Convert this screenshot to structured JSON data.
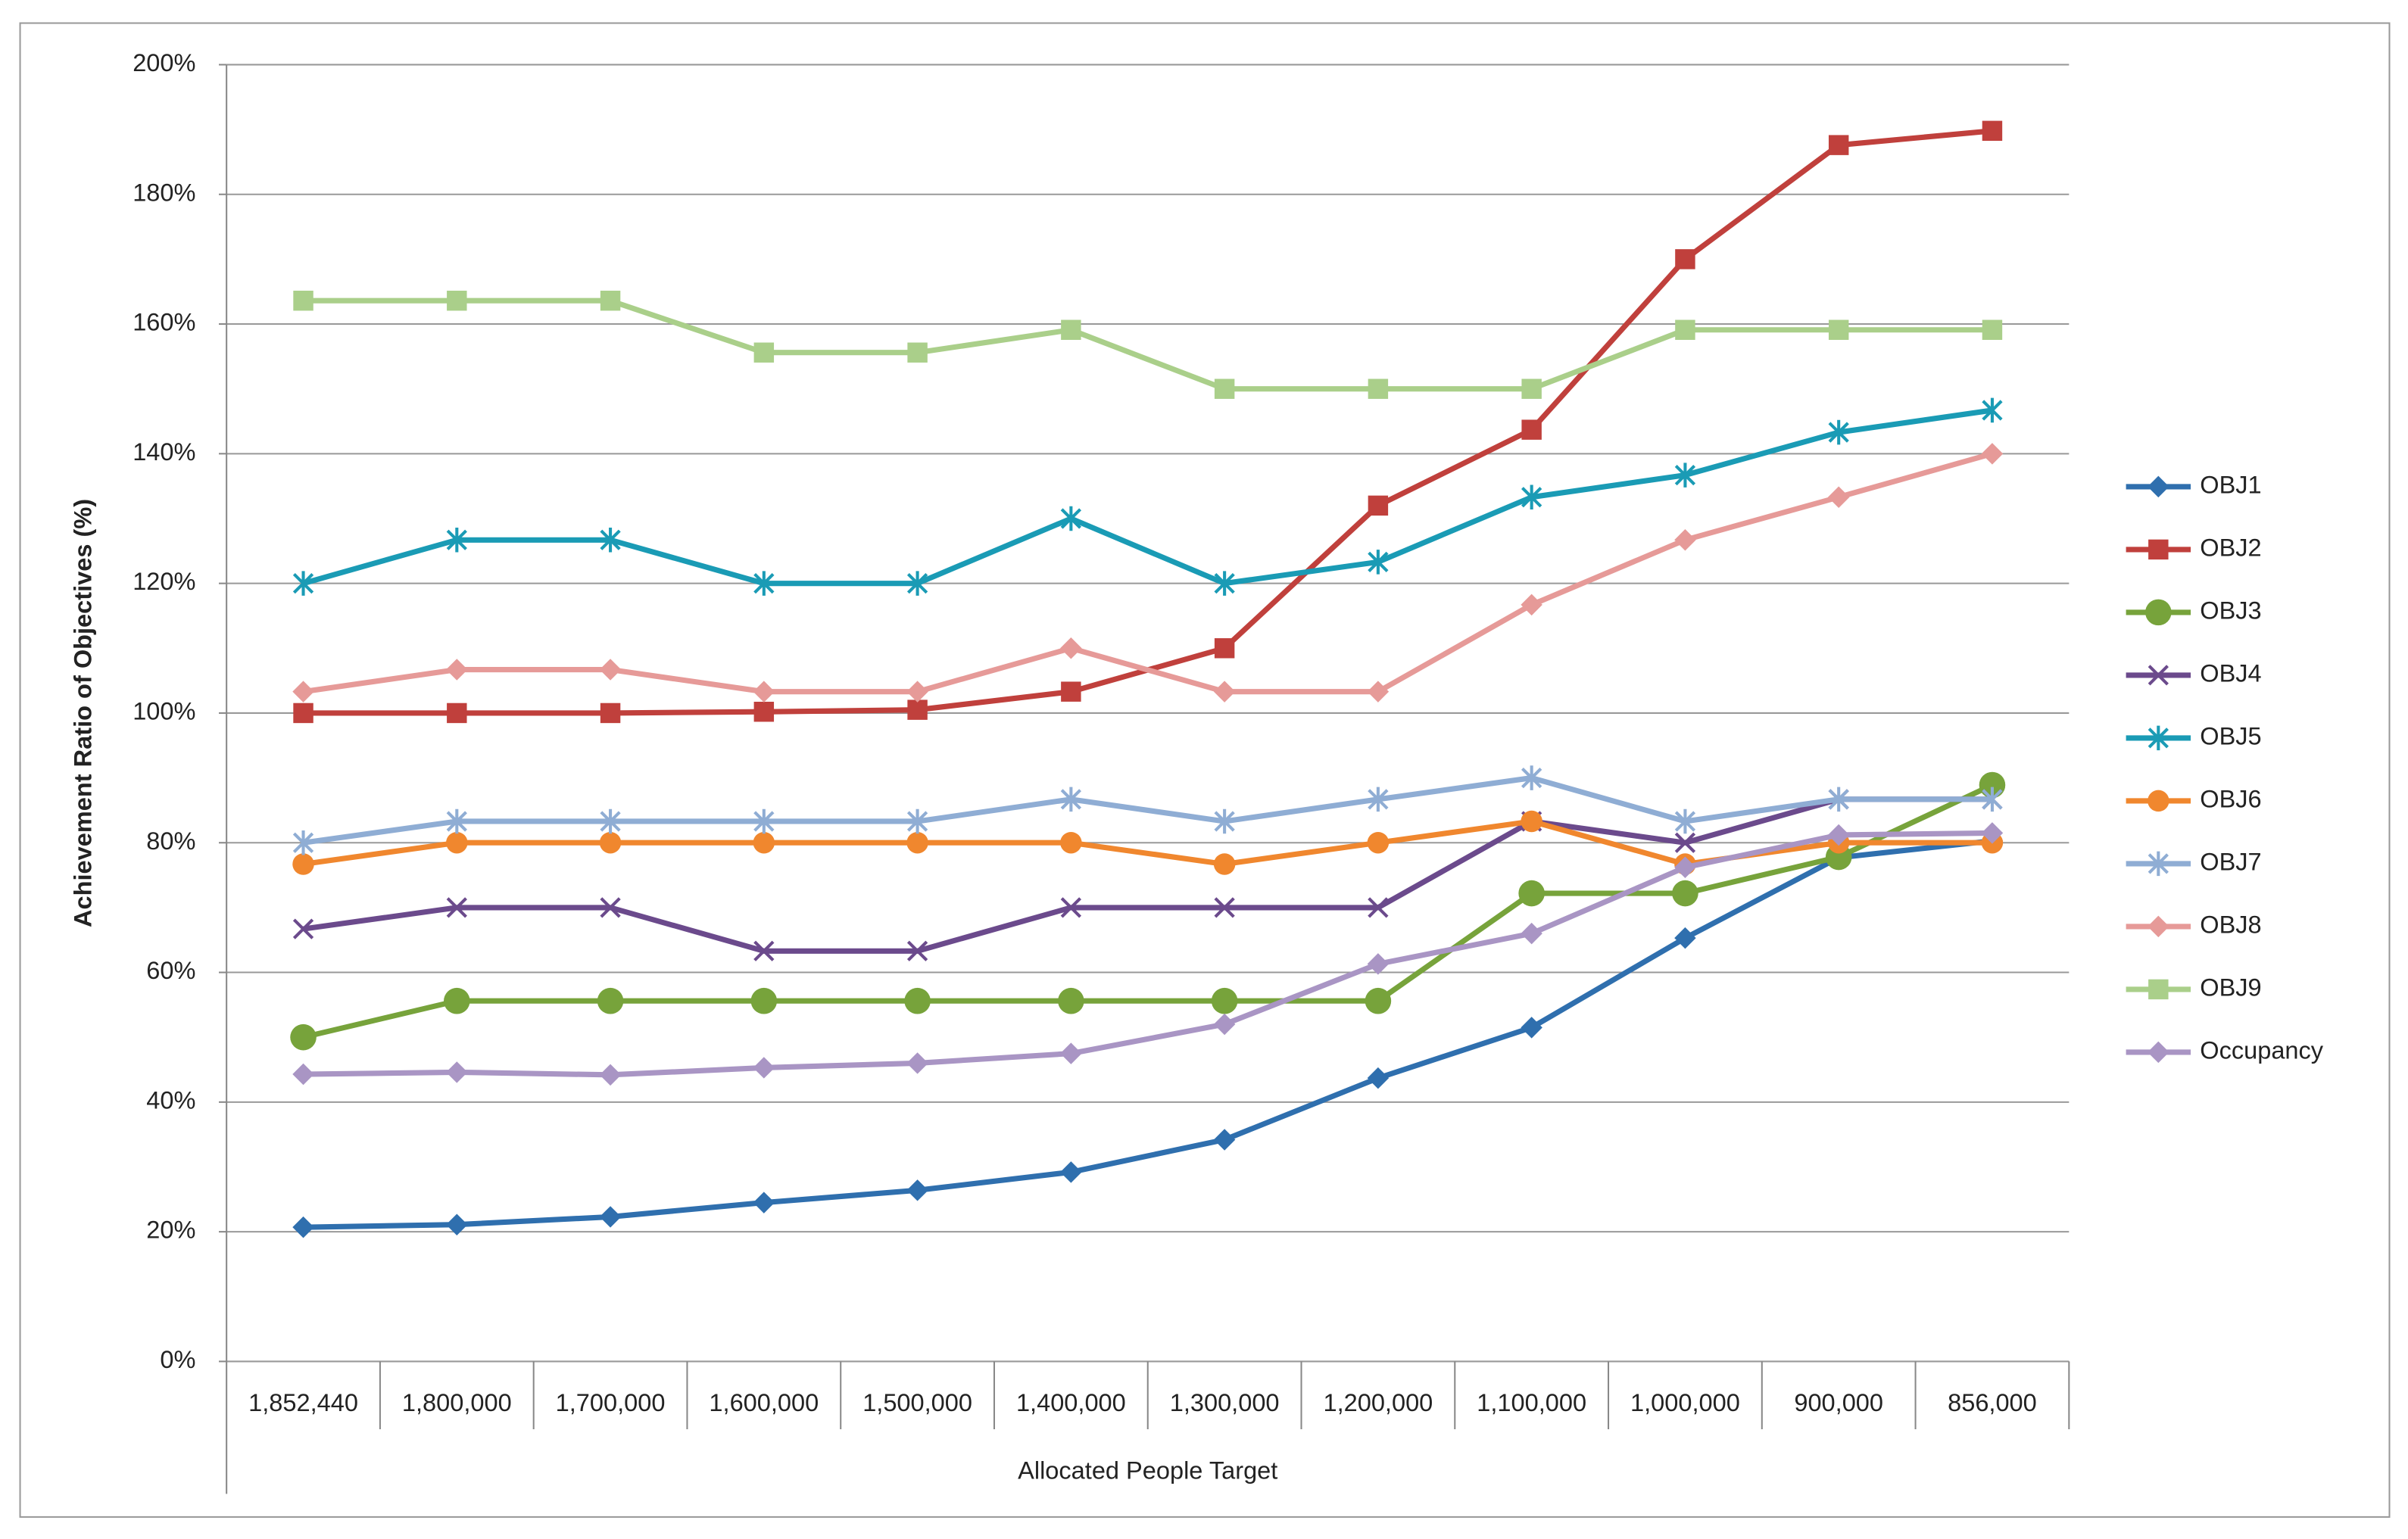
{
  "chart_data": {
    "type": "line",
    "x_label": "Allocated People Target",
    "y_label": "Achievement Ratio of Objectives (%)",
    "categories": [
      "1,852,440",
      "1,800,000",
      "1,700,000",
      "1,600,000",
      "1,500,000",
      "1,400,000",
      "1,300,000",
      "1,200,000",
      "1,100,000",
      "1,000,000",
      "900,000",
      "856,000"
    ],
    "ylim": [
      0,
      200
    ],
    "yticks": [
      {
        "value": 0,
        "label": "0%"
      },
      {
        "value": 20,
        "label": "20%"
      },
      {
        "value": 40,
        "label": "40%"
      },
      {
        "value": 60,
        "label": "60%"
      },
      {
        "value": 80,
        "label": "80%"
      },
      {
        "value": 100,
        "label": "100%"
      },
      {
        "value": 120,
        "label": "120%"
      },
      {
        "value": 140,
        "label": "140%"
      },
      {
        "value": 160,
        "label": "160%"
      },
      {
        "value": 180,
        "label": "180%"
      },
      {
        "value": 200,
        "label": "200%"
      }
    ],
    "grid": true,
    "legend": "right",
    "series": [
      {
        "name": "OBJ1",
        "color": "#2f6fae",
        "marker": "diamond",
        "values": [
          20.7,
          21.1,
          22.3,
          24.5,
          26.4,
          29.2,
          34.2,
          43.7,
          51.5,
          65.3,
          77.7,
          80.3
        ]
      },
      {
        "name": "OBJ2",
        "color": "#c0403c",
        "marker": "square",
        "values": [
          100,
          100,
          100,
          100.2,
          100.5,
          103.3,
          110,
          132,
          143.7,
          170,
          187.6,
          189.8
        ]
      },
      {
        "name": "OBJ3",
        "color": "#77a33b",
        "marker": "circle",
        "values": [
          50,
          55.6,
          55.6,
          55.6,
          55.6,
          55.6,
          55.6,
          55.6,
          72.2,
          72.2,
          77.8,
          88.9
        ]
      },
      {
        "name": "OBJ4",
        "color": "#6b4a8c",
        "marker": "x",
        "values": [
          66.7,
          70,
          70,
          63.3,
          63.3,
          70,
          70,
          70,
          83.3,
          80,
          86.7,
          86.7
        ]
      },
      {
        "name": "OBJ5",
        "color": "#1a9bb5",
        "marker": "star",
        "values": [
          120,
          126.7,
          126.7,
          120,
          120,
          130,
          120,
          123.3,
          133.3,
          136.7,
          143.3,
          146.7
        ]
      },
      {
        "name": "OBJ6",
        "color": "#f0872e",
        "marker": "dot",
        "values": [
          76.7,
          80,
          80,
          80,
          80,
          80,
          76.7,
          80,
          83.3,
          76.7,
          80,
          80
        ]
      },
      {
        "name": "OBJ7",
        "color": "#8fadd4",
        "marker": "star",
        "values": [
          80,
          83.3,
          83.3,
          83.3,
          83.3,
          86.7,
          83.3,
          86.7,
          90,
          83.3,
          86.7,
          86.7
        ]
      },
      {
        "name": "OBJ8",
        "color": "#e69a98",
        "marker": "diamond",
        "values": [
          103.3,
          106.7,
          106.7,
          103.3,
          103.3,
          110,
          103.3,
          103.3,
          116.7,
          126.7,
          133.3,
          140
        ]
      },
      {
        "name": "OBJ9",
        "color": "#aacf8a",
        "marker": "square",
        "values": [
          163.6,
          163.6,
          163.6,
          155.6,
          155.6,
          159.1,
          150,
          150,
          150,
          159.1,
          159.1,
          159.1
        ]
      },
      {
        "name": "Occupancy",
        "color": "#a995c4",
        "marker": "diamond",
        "values": [
          44.3,
          44.6,
          44.2,
          45.3,
          46,
          47.5,
          52,
          61.3,
          66,
          76.2,
          81.2,
          81.5
        ]
      }
    ]
  }
}
